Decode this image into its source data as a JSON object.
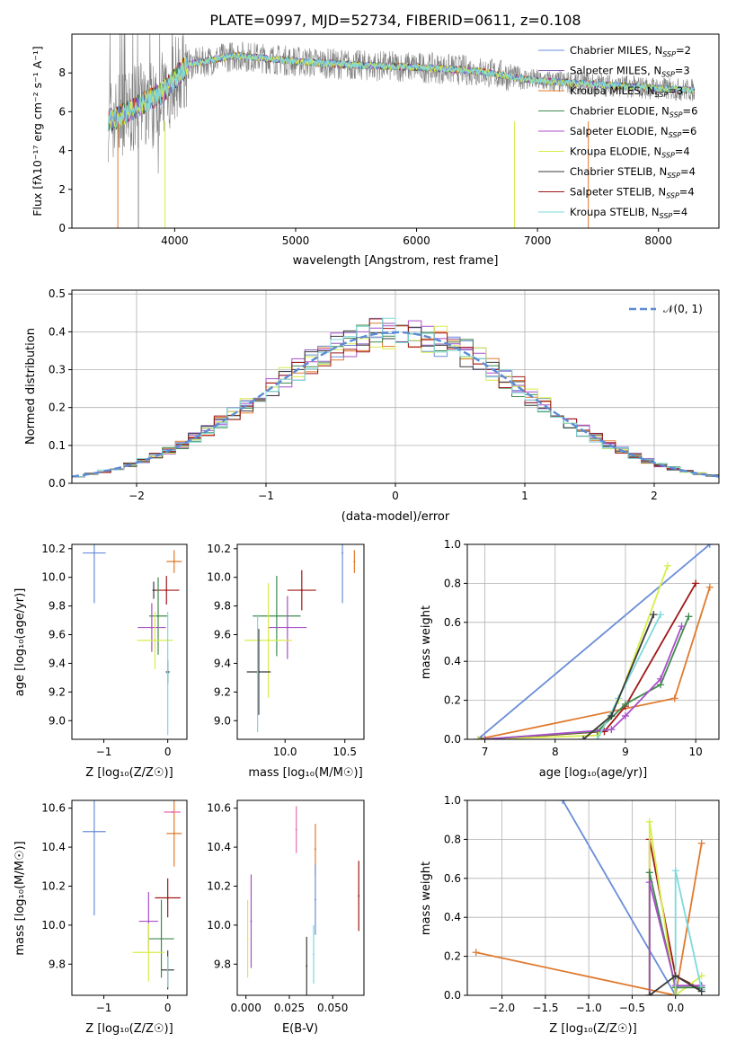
{
  "title": "PLATE=0997, MJD=52734, FIBERID=0611, z=0.108",
  "colors": {
    "chab_miles": "#6a8ed8",
    "salp_miles": "#8a5fb8",
    "krou_miles": "#e07a2e",
    "chab_elodie": "#3f8a4e",
    "salp_elodie": "#a94fc8",
    "krou_elodie": "#d8ec4a",
    "chab_stelib": "#3a3a3a",
    "salp_stelib": "#a01818",
    "krou_stelib": "#7fd8dc",
    "observed": "#808080",
    "gauss": "#5b8bd6",
    "pink": "#e56fb0"
  },
  "legend_entries": [
    "Chabrier MILES, N_SSP=2",
    "Salpeter MILES, N_SSP=3",
    "Kroupa MILES, N_SSP=3",
    "Chabrier ELODIE, N_SSP=6",
    "Salpeter ELODIE, N_SSP=6",
    "Kroupa ELODIE, N_SSP=4",
    "Chabrier STELIB, N_SSP=4",
    "Salpeter STELIB, N_SSP=4",
    "Kroupa STELIB, N_SSP=4"
  ],
  "chart_data": [
    {
      "type": "line",
      "xlabel": "wavelength [Angstrom, rest frame]",
      "ylabel": "Flux [f_λ 10^-17 erg cm^-2 s^-1 A^-1]",
      "xlim": [
        3150,
        8500
      ],
      "ylim": [
        0,
        10
      ],
      "xticks": [
        4000,
        5000,
        6000,
        7000,
        8000
      ],
      "yticks": [
        0,
        2,
        4,
        6,
        8
      ],
      "legend_position": "top-right",
      "spectrum_shape": [
        [
          3500,
          5.6
        ],
        [
          3700,
          6.3
        ],
        [
          3900,
          7.0
        ],
        [
          4100,
          8.4
        ],
        [
          4500,
          8.9
        ],
        [
          5000,
          8.6
        ],
        [
          5500,
          8.4
        ],
        [
          6000,
          8.3
        ],
        [
          6500,
          8.1
        ],
        [
          7000,
          7.6
        ],
        [
          7500,
          7.4
        ],
        [
          8000,
          7.2
        ],
        [
          8300,
          7.1
        ]
      ],
      "series": [
        "Chabrier MILES",
        "Salpeter MILES",
        "Kroupa MILES",
        "Chabrier ELODIE",
        "Salpeter ELODIE",
        "Kroupa ELODIE",
        "Chabrier STELIB",
        "Salpeter STELIB",
        "Kroupa STELIB"
      ]
    },
    {
      "type": "line",
      "xlabel": "(data-model)/error",
      "ylabel": "Normed distribution",
      "xlim": [
        -2.5,
        2.5
      ],
      "ylim": [
        0,
        0.51
      ],
      "xticks": [
        -2,
        -1,
        0,
        1,
        2
      ],
      "yticks": [
        0.0,
        0.1,
        0.2,
        0.3,
        0.4,
        0.5
      ],
      "grid": true,
      "legend_position": "top-right",
      "gaussian_label": "𝒩(0, 1)",
      "histogram": "step histograms of residuals for all 9 fits, bin width 0.1"
    },
    {
      "type": "scatter",
      "xlabel": "Z [log10(Z/Z☉)]",
      "ylabel": "age [log10(age/yr)]",
      "xlim": [
        -1.5,
        0.3
      ],
      "ylim": [
        8.87,
        10.23
      ],
      "xticks": [
        -1,
        0
      ],
      "yticks": [
        9.0,
        9.2,
        9.4,
        9.6,
        9.8,
        10.0,
        10.2
      ],
      "points": [
        {
          "series": "Chabrier MILES",
          "x": -1.15,
          "xerr": 0.18,
          "y": 10.17,
          "yerr": 0.35
        },
        {
          "series": "Kroupa MILES",
          "x": 0.1,
          "xerr": 0.12,
          "y": 10.11,
          "yerr": 0.08
        },
        {
          "series": "Salpeter STELIB",
          "x": -0.02,
          "xerr": 0.2,
          "y": 9.91,
          "yerr": 0.1
        },
        {
          "series": "Chabrier STELIB",
          "x": -0.22,
          "xerr": 0.02,
          "y": 9.91,
          "yerr": 0.06
        },
        {
          "series": "Chabrier ELODIE",
          "x": -0.15,
          "xerr": 0.14,
          "y": 9.73,
          "yerr": 0.27
        },
        {
          "series": "Salpeter ELODIE",
          "x": -0.25,
          "xerr": 0.22,
          "y": 9.65,
          "yerr": 0.17
        },
        {
          "series": "Kroupa ELODIE",
          "x": -0.2,
          "xerr": 0.28,
          "y": 9.56,
          "yerr": 0.2
        },
        {
          "series": "Chabrier STELIB",
          "x": 0.0,
          "xerr": 0.03,
          "y": 9.34,
          "yerr": 0.08
        },
        {
          "series": "Kroupa STELIB",
          "x": 0.0,
          "xerr": 0.02,
          "y": 9.33,
          "yerr": 0.43
        }
      ]
    },
    {
      "type": "scatter",
      "xlabel": "mass [log10(M/M☉)]",
      "ylabel": "",
      "xlim": [
        9.6,
        10.66
      ],
      "ylim": [
        8.87,
        10.23
      ],
      "xticks": [
        10.0,
        10.5
      ],
      "yticks": [
        9.0,
        9.2,
        9.4,
        9.6,
        9.8,
        10.0,
        10.2
      ],
      "points": [
        {
          "series": "Chabrier MILES",
          "x": 10.48,
          "xerr": 0.0,
          "y": 10.17,
          "yerr": 0.35
        },
        {
          "series": "Kroupa MILES",
          "x": 10.58,
          "xerr": 0.0,
          "y": 10.11,
          "yerr": 0.08
        },
        {
          "series": "Salpeter STELIB",
          "x": 10.14,
          "xerr": 0.12,
          "y": 9.91,
          "yerr": 0.14
        },
        {
          "series": "Chabrier ELODIE",
          "x": 9.93,
          "xerr": 0.2,
          "y": 9.73,
          "yerr": 0.28
        },
        {
          "series": "Salpeter ELODIE",
          "x": 10.02,
          "xerr": 0.16,
          "y": 9.65,
          "yerr": 0.22
        },
        {
          "series": "Kroupa ELODIE",
          "x": 9.86,
          "xerr": 0.2,
          "y": 9.56,
          "yerr": 0.4
        },
        {
          "series": "Chabrier STELIB",
          "x": 9.78,
          "xerr": 0.1,
          "y": 9.34,
          "yerr": 0.3
        },
        {
          "series": "Kroupa STELIB",
          "x": 9.77,
          "xerr": 0.0,
          "y": 9.33,
          "yerr": 0.41
        }
      ]
    },
    {
      "type": "line",
      "xlabel": "age [log10(age/yr)]",
      "ylabel": "mass weight",
      "xlim": [
        6.75,
        10.33
      ],
      "ylim": [
        0.0,
        1.0
      ],
      "xticks": [
        7,
        8,
        9,
        10
      ],
      "yticks": [
        0.0,
        0.2,
        0.4,
        0.6,
        0.8,
        1.0
      ],
      "grid": true,
      "lines": [
        {
          "series": "Chabrier MILES",
          "points": [
            [
              6.9,
              0.0
            ],
            [
              10.2,
              1.0
            ]
          ]
        },
        {
          "series": "Kroupa MILES",
          "points": [
            [
              6.9,
              0.0
            ],
            [
              9.7,
              0.21
            ],
            [
              10.2,
              0.78
            ]
          ]
        },
        {
          "series": "Salpeter STELIB",
          "points": [
            [
              7.0,
              0.0
            ],
            [
              8.7,
              0.04
            ],
            [
              9.0,
              0.17
            ],
            [
              10.0,
              0.8
            ]
          ]
        },
        {
          "series": "Kroupa ELODIE",
          "points": [
            [
              6.9,
              0.0
            ],
            [
              8.6,
              0.02
            ],
            [
              8.9,
              0.2
            ],
            [
              9.6,
              0.89
            ]
          ]
        },
        {
          "series": "Chabrier ELODIE",
          "points": [
            [
              6.95,
              0.0
            ],
            [
              8.6,
              0.04
            ],
            [
              9.0,
              0.18
            ],
            [
              9.5,
              0.28
            ],
            [
              9.9,
              0.63
            ]
          ]
        },
        {
          "series": "Salpeter ELODIE",
          "points": [
            [
              7.0,
              0.0
            ],
            [
              8.8,
              0.05
            ],
            [
              9.0,
              0.12
            ],
            [
              9.5,
              0.31
            ],
            [
              9.8,
              0.58
            ]
          ]
        },
        {
          "series": "Kroupa STELIB",
          "points": [
            [
              8.6,
              0.0
            ],
            [
              8.9,
              0.21
            ],
            [
              9.5,
              0.64
            ]
          ]
        },
        {
          "series": "Chabrier STELIB",
          "points": [
            [
              8.4,
              0.0
            ],
            [
              8.8,
              0.12
            ],
            [
              9.4,
              0.64
            ]
          ]
        }
      ]
    },
    {
      "type": "scatter",
      "xlabel": "Z [log10(Z/Z☉)]",
      "ylabel": "mass [log10(M/M☉)]",
      "xlim": [
        -1.5,
        0.3
      ],
      "ylim": [
        9.64,
        10.64
      ],
      "xticks": [
        -1,
        0
      ],
      "yticks": [
        9.8,
        10.0,
        10.2,
        10.4,
        10.6
      ],
      "points": [
        {
          "series": "Chabrier MILES",
          "x": -1.15,
          "xerr": 0.18,
          "y": 10.48,
          "yerr": 0.43
        },
        {
          "series": "Kroupa MILES",
          "x": 0.1,
          "xerr": 0.12,
          "y": 10.47,
          "yerr": 0.17
        },
        {
          "series": "pink",
          "x": 0.07,
          "xerr": 0.13,
          "y": 10.58,
          "yerr": 0.0
        },
        {
          "series": "Salpeter STELIB",
          "x": 0.0,
          "xerr": 0.2,
          "y": 10.14,
          "yerr": 0.1
        },
        {
          "series": "Salpeter ELODIE",
          "x": -0.3,
          "xerr": 0.15,
          "y": 10.02,
          "yerr": 0.15
        },
        {
          "series": "Chabrier ELODIE",
          "x": -0.1,
          "xerr": 0.2,
          "y": 9.93,
          "yerr": 0.2
        },
        {
          "series": "Kroupa ELODIE",
          "x": -0.3,
          "xerr": 0.25,
          "y": 9.86,
          "yerr": 0.15
        },
        {
          "series": "Chabrier STELIB",
          "x": 0.0,
          "xerr": 0.1,
          "y": 9.77,
          "yerr": 0.1
        },
        {
          "series": "Kroupa STELIB",
          "x": 0.0,
          "xerr": 0.0,
          "y": 9.76,
          "yerr": 0.08
        }
      ]
    },
    {
      "type": "scatter",
      "xlabel": "E(B-V)",
      "ylabel": "",
      "xlim": [
        -0.005,
        0.068
      ],
      "ylim": [
        9.64,
        10.64
      ],
      "xticks": [
        0.0,
        0.025,
        0.05
      ],
      "xtick_labels": [
        "0.000",
        "0.025",
        "0.050"
      ],
      "yticks": [
        9.8,
        10.0,
        10.2,
        10.4,
        10.6
      ],
      "points": [
        {
          "series": "pink",
          "x": 0.029,
          "y": 10.49,
          "yerr": 0.12
        },
        {
          "series": "Kroupa MILES",
          "x": 0.04,
          "y": 10.39,
          "yerr": 0.13
        },
        {
          "series": "Chabrier MILES",
          "x": 0.04,
          "y": 10.13,
          "yerr": 0.18
        },
        {
          "series": "Salpeter ELODIE",
          "x": 0.003,
          "y": 10.02,
          "yerr": 0.24
        },
        {
          "series": "Kroupa ELODIE",
          "x": 0.001,
          "y": 9.93,
          "yerr": 0.2
        },
        {
          "series": "Salpeter STELIB",
          "x": 0.065,
          "y": 10.15,
          "yerr": 0.18
        },
        {
          "series": "Kroupa STELIB",
          "x": 0.039,
          "y": 9.85,
          "yerr": 0.15
        },
        {
          "series": "Chabrier STELIB",
          "x": 0.035,
          "y": 9.79,
          "yerr": 0.15
        }
      ]
    },
    {
      "type": "line",
      "xlabel": "Z [log10(Z/Z☉)]",
      "ylabel": "mass weight",
      "xlim": [
        -2.4,
        0.5
      ],
      "ylim": [
        0.0,
        1.0
      ],
      "xticks": [
        -2.0,
        -1.5,
        -1.0,
        -0.5,
        0.0
      ],
      "yticks": [
        0.0,
        0.2,
        0.4,
        0.6,
        0.8,
        1.0
      ],
      "grid": true,
      "lines": [
        {
          "series": "Chabrier MILES",
          "points": [
            [
              -1.3,
              1.0
            ],
            [
              0.0,
              0.0
            ]
          ]
        },
        {
          "series": "Kroupa MILES",
          "points": [
            [
              -2.3,
              0.22
            ],
            [
              0.0,
              0.0
            ],
            [
              0.3,
              0.78
            ]
          ]
        },
        {
          "series": "Salpeter STELIB",
          "points": [
            [
              -0.3,
              0.0
            ],
            [
              -0.3,
              0.8
            ],
            [
              0.0,
              0.1
            ],
            [
              0.3,
              0.03
            ]
          ]
        },
        {
          "series": "Kroupa ELODIE",
          "points": [
            [
              -0.3,
              0.0
            ],
            [
              -0.3,
              0.89
            ],
            [
              0.0,
              0.0
            ],
            [
              0.3,
              0.1
            ]
          ]
        },
        {
          "series": "Chabrier ELODIE",
          "points": [
            [
              -0.3,
              0.0
            ],
            [
              -0.3,
              0.63
            ],
            [
              0.0,
              0.04
            ],
            [
              0.3,
              0.04
            ]
          ]
        },
        {
          "series": "Salpeter ELODIE",
          "points": [
            [
              -0.3,
              0.0
            ],
            [
              -0.3,
              0.58
            ],
            [
              0.0,
              0.05
            ],
            [
              0.3,
              0.05
            ]
          ]
        },
        {
          "series": "Kroupa STELIB",
          "points": [
            [
              0.0,
              0.0
            ],
            [
              0.0,
              0.64
            ],
            [
              0.3,
              0.03
            ]
          ]
        },
        {
          "series": "Chabrier STELIB",
          "points": [
            [
              -0.3,
              0.0
            ],
            [
              0.0,
              0.1
            ],
            [
              0.3,
              0.02
            ]
          ]
        }
      ]
    }
  ]
}
